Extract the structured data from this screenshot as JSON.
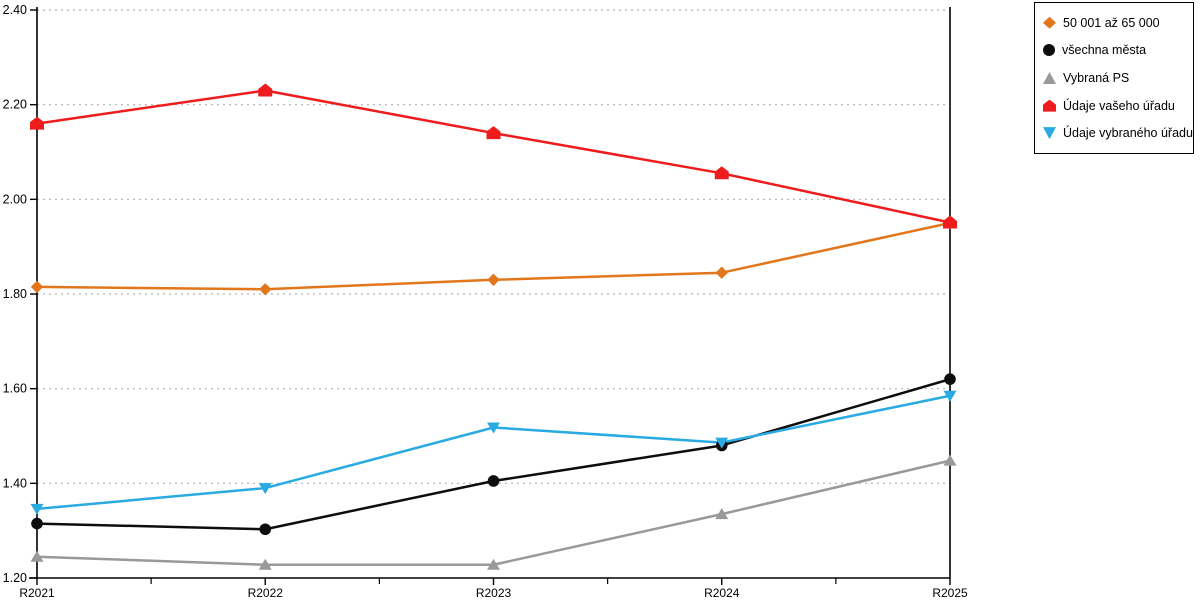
{
  "chart_data": {
    "type": "line",
    "title": "",
    "xlabel": "",
    "ylabel": "",
    "x": [
      "R2021",
      "R2022",
      "R2023",
      "R2024",
      "R2025"
    ],
    "ylim": [
      1.2,
      2.4
    ],
    "ytick_labels": [
      "1.20",
      "1.40",
      "1.60",
      "1.80",
      "2.00",
      "2.20",
      "2.40"
    ],
    "grid": "horizontal dotted gridlines at each y tick",
    "legend_position": "top-right, outside plot, black-bordered box",
    "series": [
      {
        "name": "50 001 až 65 000",
        "marker": "diamond",
        "color": "#e2761b",
        "values": [
          1.815,
          1.81,
          1.83,
          1.845,
          1.95
        ]
      },
      {
        "name": "všechna města",
        "marker": "circle",
        "color": "#0d0d0d",
        "values": [
          1.315,
          1.303,
          1.405,
          1.48,
          1.62
        ]
      },
      {
        "name": "Vybraná PS",
        "marker": "triangle-up",
        "color": "#999999",
        "values": [
          1.245,
          1.228,
          1.228,
          1.335,
          1.448
        ]
      },
      {
        "name": "Údaje vašeho úřadu",
        "marker": "pentagon",
        "color": "#ee1c1c",
        "values": [
          2.16,
          2.23,
          2.14,
          2.055,
          1.951
        ]
      },
      {
        "name": "Údaje vybraného úřadu",
        "marker": "triangle-down",
        "color": "#29abe2",
        "values": [
          1.346,
          1.39,
          1.518,
          1.486,
          1.585
        ]
      }
    ]
  },
  "colors": {
    "axis": "#000000",
    "grid": "#b3b3b3",
    "background": "#ffffff",
    "tick_label": "#000000"
  }
}
